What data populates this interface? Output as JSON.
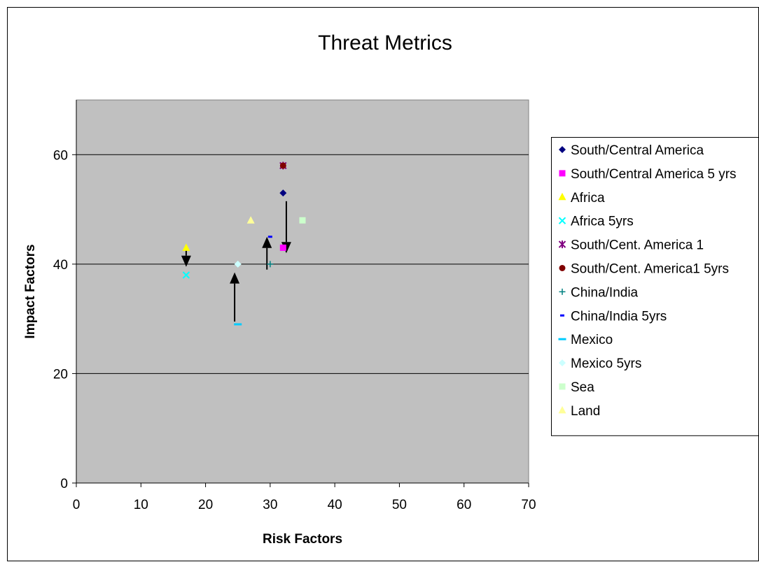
{
  "chart_data": {
    "type": "scatter",
    "title": "Threat Metrics",
    "xlabel": "Risk Factors",
    "ylabel": "Impact Factors",
    "xlim": [
      0,
      70
    ],
    "ylim": [
      0,
      70
    ],
    "x_ticks": [
      "0",
      "10",
      "20",
      "30",
      "40",
      "50",
      "60",
      "70"
    ],
    "x_tick_values": [
      0,
      10,
      20,
      30,
      40,
      50,
      60,
      70
    ],
    "y_ticks": [
      "0",
      "20",
      "40",
      "60"
    ],
    "y_tick_values": [
      0,
      20,
      40,
      60
    ],
    "grid": "horizontal",
    "plot_background": "#c0c0c0",
    "legend_position": "right",
    "series": [
      {
        "name": "South/Central America",
        "marker": "diamond",
        "color": "#000080",
        "points": [
          [
            32,
            53
          ]
        ]
      },
      {
        "name": "South/Central America 5 yrs",
        "marker": "square",
        "color": "#ff00ff",
        "points": [
          [
            32,
            43
          ]
        ]
      },
      {
        "name": "Africa",
        "marker": "triangle",
        "color": "#ffff00",
        "points": [
          [
            17,
            43
          ]
        ]
      },
      {
        "name": "Africa 5yrs",
        "marker": "x",
        "color": "#00ffff",
        "points": [
          [
            17,
            38
          ]
        ]
      },
      {
        "name": "South/Cent. America 1",
        "marker": "star",
        "color": "#800080",
        "points": [
          [
            32,
            58
          ]
        ]
      },
      {
        "name": "South/Cent. America1 5yrs",
        "marker": "circle",
        "color": "#800000",
        "points": [
          [
            32,
            58
          ]
        ]
      },
      {
        "name": "China/India",
        "marker": "plus",
        "color": "#008080",
        "points": [
          [
            30,
            40
          ]
        ]
      },
      {
        "name": "China/India 5yrs",
        "marker": "short-dash",
        "color": "#0000ff",
        "points": [
          [
            30,
            45
          ]
        ]
      },
      {
        "name": "Mexico",
        "marker": "long-dash",
        "color": "#00ccff",
        "points": [
          [
            25,
            29
          ]
        ]
      },
      {
        "name": "Mexico 5yrs",
        "marker": "diamond",
        "color": "#ccffff",
        "points": [
          [
            25,
            40
          ]
        ]
      },
      {
        "name": "Sea",
        "marker": "square",
        "color": "#ccffcc",
        "points": [
          [
            35,
            48
          ]
        ]
      },
      {
        "name": "Land",
        "marker": "triangle",
        "color": "#ffff99",
        "points": [
          [
            27,
            48
          ]
        ]
      }
    ],
    "annotations": [
      {
        "type": "arrow",
        "from": [
          17,
          42.5
        ],
        "to": [
          17,
          39.5
        ]
      },
      {
        "type": "arrow",
        "from": [
          24.5,
          29.5
        ],
        "to": [
          24.5,
          38.5
        ]
      },
      {
        "type": "arrow",
        "from": [
          29.5,
          39
        ],
        "to": [
          29.5,
          45
        ]
      },
      {
        "type": "arrow",
        "from": [
          32.5,
          51.5
        ],
        "to": [
          32.5,
          42
        ]
      }
    ]
  }
}
